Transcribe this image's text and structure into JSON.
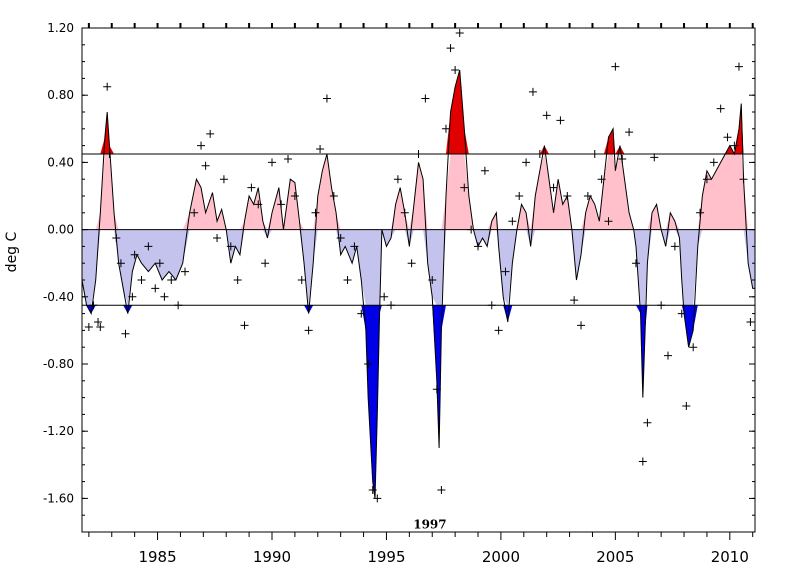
{
  "chart_data": {
    "type": "area",
    "title": "",
    "xlabel": "",
    "ylabel": "deg C",
    "xlim": [
      1981.7,
      2011.1
    ],
    "ylim": [
      -1.8,
      1.2
    ],
    "grid": false,
    "legend": "none",
    "x_ticks": [
      1985,
      1990,
      1995,
      2000,
      2005,
      2010
    ],
    "x_tick_labels": [
      "1985",
      "1990",
      "1995",
      "2000",
      "2005",
      "2010"
    ],
    "y_ticks": [
      1.2,
      0.8,
      0.4,
      0.0,
      -0.4,
      -0.8,
      -1.2,
      -1.6
    ],
    "y_tick_labels": [
      "1.20",
      "0.80",
      "0.40",
      "0.00",
      "-0.40",
      "-0.80",
      "-1.20",
      "-1.60"
    ],
    "thresholds": [
      0.45,
      -0.45
    ],
    "colors": {
      "strong_positive": "#e00000",
      "positive": "#ffc0cb",
      "negative": "#c3c3ee",
      "strong_negative": "#0000e6",
      "line": "#000000"
    },
    "annotations": [
      {
        "text": "1997",
        "x": 1996.9,
        "y": -1.75
      }
    ],
    "series": [
      {
        "type": "line",
        "x": [
          1981.7,
          1981.9,
          1982.1,
          1982.3,
          1982.5,
          1982.7,
          1982.8,
          1982.9,
          1983.1,
          1983.3,
          1983.5,
          1983.7,
          1983.9,
          1984.1,
          1984.3,
          1984.6,
          1984.9,
          1985.2,
          1985.5,
          1985.8,
          1986.1,
          1986.4,
          1986.7,
          1986.9,
          1987.1,
          1987.4,
          1987.6,
          1987.8,
          1988.0,
          1988.2,
          1988.4,
          1988.6,
          1988.8,
          1989.0,
          1989.2,
          1989.4,
          1989.6,
          1989.8,
          1990.0,
          1990.3,
          1990.5,
          1990.8,
          1991.0,
          1991.2,
          1991.4,
          1991.6,
          1991.8,
          1992.0,
          1992.2,
          1992.4,
          1992.6,
          1992.8,
          1993.0,
          1993.2,
          1993.5,
          1993.7,
          1993.9,
          1994.1,
          1994.2,
          1994.4,
          1994.5,
          1994.6,
          1994.7,
          1994.8,
          1995.0,
          1995.2,
          1995.4,
          1995.6,
          1995.8,
          1996.0,
          1996.2,
          1996.4,
          1996.6,
          1996.8,
          1997.0,
          1997.2,
          1997.3,
          1997.4,
          1997.6,
          1997.8,
          1998.0,
          1998.2,
          1998.4,
          1998.6,
          1998.8,
          1999.0,
          1999.2,
          1999.4,
          1999.6,
          1999.8,
          1999.9,
          2000.1,
          2000.3,
          2000.5,
          2000.7,
          2000.9,
          2001.1,
          2001.3,
          2001.5,
          2001.7,
          2001.9,
          2002.1,
          2002.3,
          2002.5,
          2002.7,
          2002.9,
          2003.1,
          2003.3,
          2003.5,
          2003.7,
          2003.9,
          2004.1,
          2004.3,
          2004.5,
          2004.7,
          2004.9,
          2005.0,
          2005.2,
          2005.4,
          2005.6,
          2005.8,
          2005.9,
          2006.1,
          2006.2,
          2006.3,
          2006.4,
          2006.6,
          2006.8,
          2007.0,
          2007.2,
          2007.4,
          2007.6,
          2007.8,
          2007.9,
          2008.0,
          2008.2,
          2008.4,
          2008.6,
          2008.8,
          2009.0,
          2009.2,
          2009.4,
          2009.6,
          2009.8,
          2010.0,
          2010.2,
          2010.4,
          2010.5,
          2010.6,
          2010.8,
          2011.0,
          2011.1
        ],
        "values": [
          -0.3,
          -0.45,
          -0.5,
          -0.3,
          0.1,
          0.55,
          0.7,
          0.5,
          0.1,
          -0.2,
          -0.35,
          -0.5,
          -0.25,
          -0.15,
          -0.2,
          -0.25,
          -0.2,
          -0.3,
          -0.25,
          -0.3,
          -0.2,
          0.1,
          0.3,
          0.25,
          0.1,
          0.22,
          0.05,
          0.12,
          0.0,
          -0.2,
          -0.1,
          -0.15,
          0.05,
          0.2,
          0.15,
          0.25,
          0.05,
          -0.05,
          0.1,
          0.25,
          0.0,
          0.3,
          0.28,
          0.05,
          -0.2,
          -0.5,
          -0.2,
          0.2,
          0.35,
          0.45,
          0.25,
          0.1,
          -0.15,
          -0.1,
          -0.2,
          -0.1,
          -0.3,
          -0.6,
          -1.0,
          -1.5,
          -1.6,
          -1.1,
          -0.5,
          0.0,
          -0.1,
          -0.05,
          0.15,
          0.25,
          0.1,
          -0.1,
          0.15,
          0.4,
          0.3,
          -0.2,
          -0.4,
          -0.9,
          -1.3,
          -0.6,
          0.2,
          0.7,
          0.85,
          0.95,
          0.6,
          0.2,
          0.0,
          -0.1,
          -0.05,
          -0.1,
          0.05,
          0.1,
          -0.1,
          -0.4,
          -0.55,
          -0.2,
          0.0,
          0.15,
          0.1,
          -0.1,
          0.2,
          0.35,
          0.5,
          0.3,
          0.1,
          0.3,
          0.15,
          0.2,
          0.0,
          -0.3,
          -0.15,
          0.1,
          0.2,
          0.15,
          0.05,
          0.3,
          0.55,
          0.6,
          0.35,
          0.5,
          0.3,
          0.1,
          0.0,
          -0.1,
          -0.5,
          -1.0,
          -0.6,
          -0.2,
          0.1,
          0.15,
          0.0,
          -0.1,
          0.1,
          0.05,
          -0.05,
          -0.3,
          -0.5,
          -0.7,
          -0.6,
          -0.1,
          0.2,
          0.35,
          0.3,
          0.35,
          0.4,
          0.45,
          0.5,
          0.45,
          0.6,
          0.75,
          0.3,
          -0.2,
          -0.35,
          -0.35
        ]
      },
      {
        "type": "scatter",
        "marker": "+",
        "x": [
          1982.0,
          1982.2,
          1982.4,
          1982.5,
          1982.8,
          1982.9,
          1983.2,
          1983.4,
          1983.6,
          1983.9,
          1984.0,
          1984.3,
          1984.6,
          1984.9,
          1985.1,
          1985.3,
          1985.6,
          1985.9,
          1986.2,
          1986.6,
          1986.9,
          1987.1,
          1987.3,
          1987.6,
          1987.9,
          1988.2,
          1988.5,
          1988.8,
          1989.1,
          1989.4,
          1989.7,
          1990.0,
          1990.4,
          1990.7,
          1991.0,
          1991.3,
          1991.6,
          1991.9,
          1992.1,
          1992.4,
          1992.7,
          1993.0,
          1993.3,
          1993.6,
          1993.9,
          1994.2,
          1994.4,
          1994.6,
          1994.9,
          1995.2,
          1995.5,
          1995.8,
          1996.1,
          1996.4,
          1996.7,
          1997.0,
          1997.2,
          1997.4,
          1997.6,
          1997.8,
          1998.0,
          1998.2,
          1998.4,
          1998.7,
          1999.0,
          1999.3,
          1999.6,
          1999.9,
          2000.2,
          2000.5,
          2000.8,
          2001.1,
          2001.4,
          2001.7,
          2002.0,
          2002.3,
          2002.6,
          2002.9,
          2003.2,
          2003.5,
          2003.8,
          2004.1,
          2004.4,
          2004.7,
          2005.0,
          2005.3,
          2005.6,
          2005.9,
          2006.2,
          2006.4,
          2006.7,
          2007.0,
          2007.3,
          2007.6,
          2007.9,
          2008.1,
          2008.4,
          2008.7,
          2009.0,
          2009.3,
          2009.6,
          2009.9,
          2010.2,
          2010.4,
          2010.6,
          2010.9
        ],
        "values": [
          -0.58,
          -0.45,
          -0.55,
          -0.58,
          0.85,
          0.45,
          -0.05,
          -0.2,
          -0.62,
          -0.4,
          -0.15,
          -0.3,
          -0.1,
          -0.35,
          -0.2,
          -0.4,
          -0.3,
          -0.45,
          -0.25,
          0.1,
          0.5,
          0.38,
          0.57,
          -0.05,
          0.3,
          -0.1,
          -0.3,
          -0.57,
          0.25,
          0.15,
          -0.2,
          0.4,
          0.15,
          0.42,
          0.2,
          -0.3,
          -0.6,
          0.1,
          0.48,
          0.78,
          0.2,
          -0.05,
          -0.3,
          -0.1,
          -0.5,
          -0.8,
          -1.55,
          -1.6,
          -0.4,
          -0.45,
          0.3,
          0.1,
          -0.2,
          0.45,
          0.78,
          -0.3,
          -0.95,
          -1.55,
          0.6,
          1.08,
          0.95,
          1.17,
          0.25,
          0.0,
          -0.1,
          0.35,
          -0.45,
          -0.6,
          -0.25,
          0.05,
          0.2,
          0.4,
          0.82,
          0.45,
          0.68,
          0.25,
          0.65,
          0.2,
          -0.42,
          -0.57,
          0.2,
          0.45,
          0.3,
          0.05,
          0.97,
          0.42,
          0.58,
          -0.2,
          -1.38,
          -1.15,
          0.43,
          -0.45,
          -0.75,
          -0.1,
          -0.5,
          -1.05,
          -0.7,
          0.1,
          0.3,
          0.4,
          0.72,
          0.55,
          0.5,
          0.97,
          0.3,
          -0.55
        ]
      }
    ]
  }
}
